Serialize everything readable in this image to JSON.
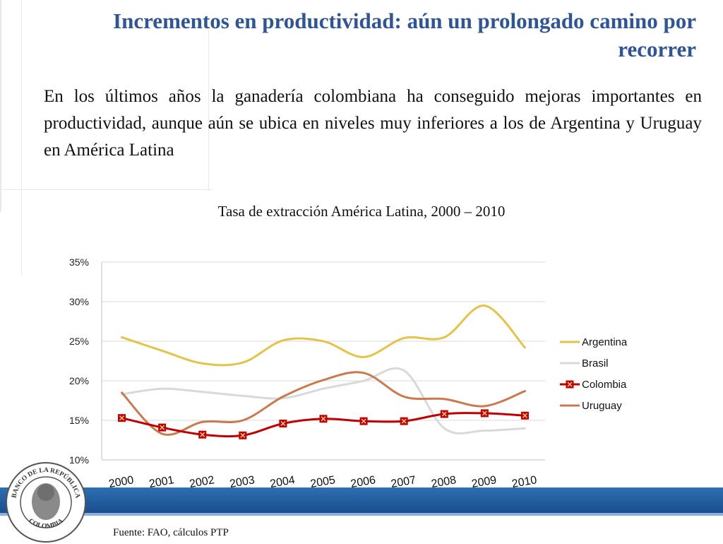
{
  "slide": {
    "title": "Incrementos en productividad: aún un prolongado camino por recorrer",
    "body": "En los últimos años la ganadería colombiana ha conseguido mejoras importantes en productividad, aunque aún se ubica en niveles muy inferiores a los de Argentina y Uruguay en América Latina",
    "source": "Fuente: FAO, cálculos PTP"
  },
  "logo": {
    "text_top": "BANCO DE LA REPÚBLICA",
    "text_bottom": "COLOMBIA"
  },
  "colors": {
    "title": "#2f5597",
    "band": "#1f5a9e",
    "Argentina": "#e4c348",
    "Brasil": "#d9d9d9",
    "Colombia": "#c00000",
    "Uruguay": "#c97a4f"
  },
  "chart_data": {
    "type": "line",
    "title": "Tasa de extracción América Latina, 2000 – 2010",
    "categories": [
      "2000",
      "2001",
      "2002",
      "2003",
      "2004",
      "2005",
      "2006",
      "2007",
      "2008",
      "2009",
      "2010"
    ],
    "ylim": [
      0.1,
      0.35
    ],
    "yticks": [
      "35%",
      "30%",
      "25%",
      "20%",
      "15%",
      "10%"
    ],
    "grid": true,
    "legend_position": "right",
    "series": [
      {
        "name": "Argentina",
        "values": [
          0.255,
          0.238,
          0.222,
          0.223,
          0.251,
          0.25,
          0.23,
          0.254,
          0.255,
          0.295,
          0.242
        ]
      },
      {
        "name": "Brasil",
        "values": [
          0.183,
          0.19,
          0.186,
          0.181,
          0.178,
          0.19,
          0.2,
          0.213,
          0.14,
          0.137,
          0.14
        ]
      },
      {
        "name": "Colombia",
        "values": [
          0.153,
          0.141,
          0.132,
          0.131,
          0.146,
          0.152,
          0.149,
          0.149,
          0.158,
          0.159,
          0.156
        ],
        "marker": "x-square"
      },
      {
        "name": "Uruguay",
        "values": [
          0.185,
          0.133,
          0.148,
          0.15,
          0.18,
          0.201,
          0.21,
          0.18,
          0.177,
          0.168,
          0.187
        ]
      }
    ]
  }
}
